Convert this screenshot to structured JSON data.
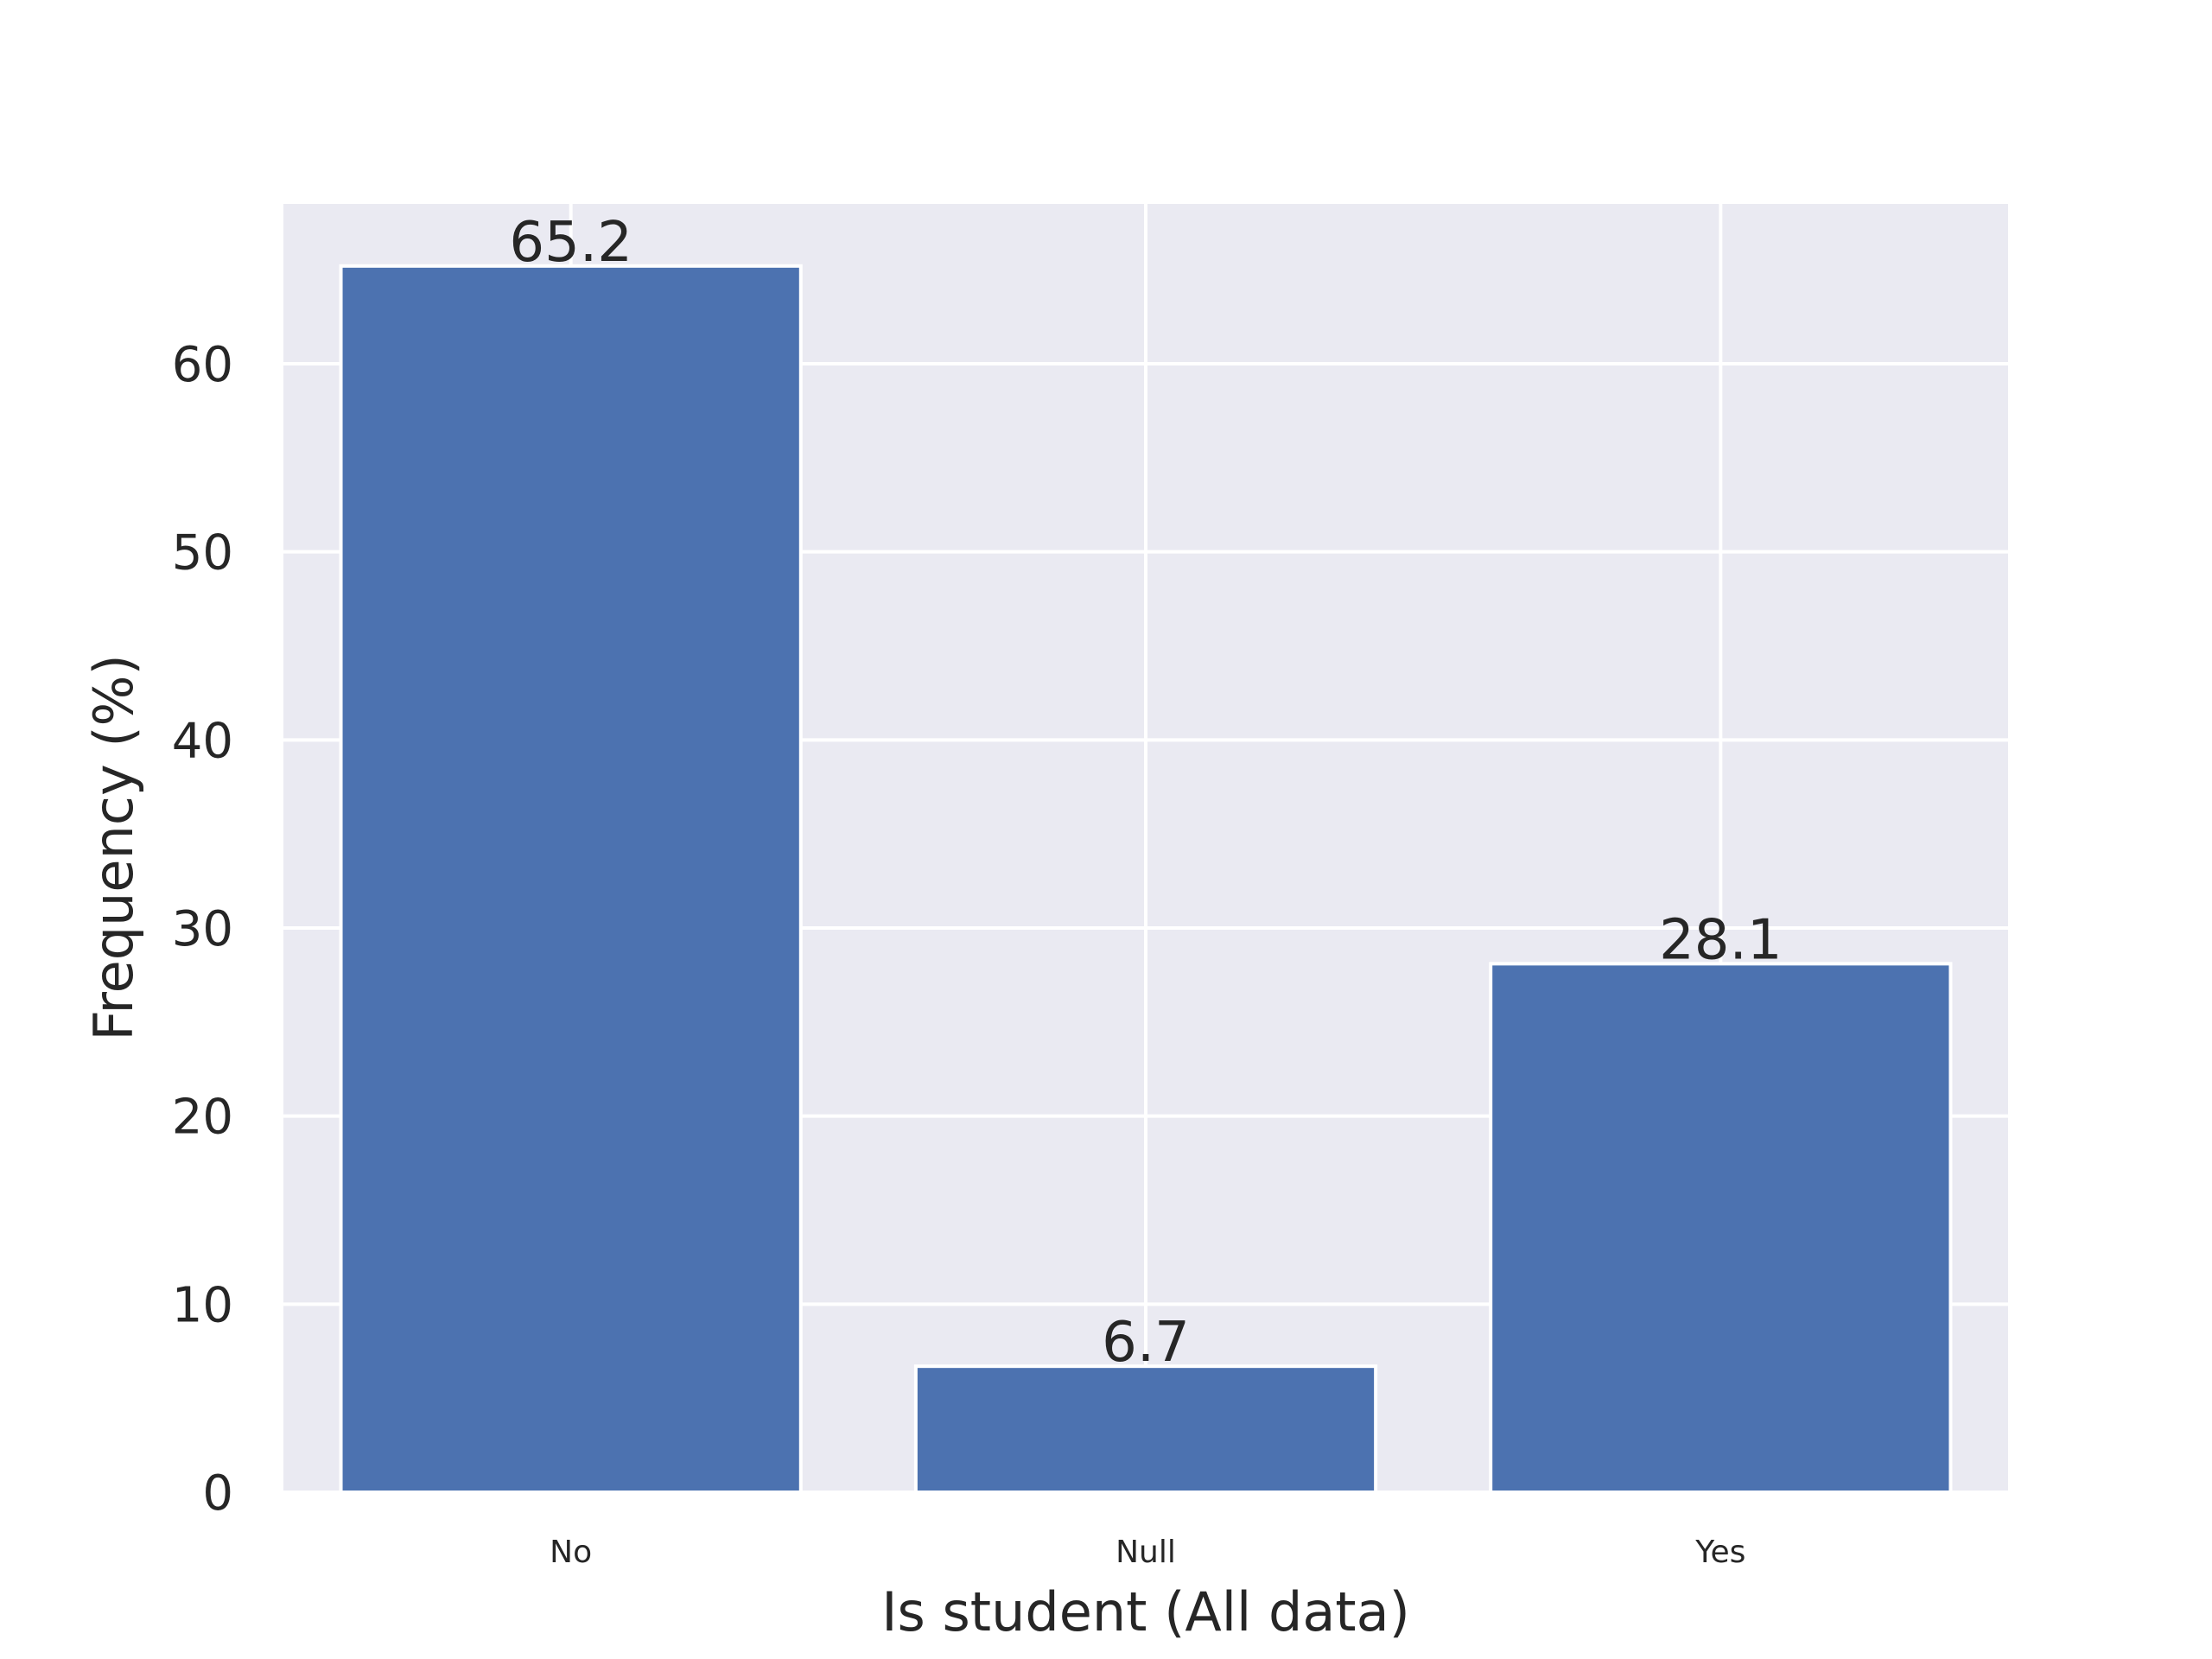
{
  "chart_data": {
    "type": "bar",
    "categories": [
      "No",
      "Null",
      "Yes"
    ],
    "values": [
      65.2,
      6.7,
      28.1
    ],
    "data_labels": [
      "65.2",
      "6.7",
      "28.1"
    ],
    "title": "",
    "xlabel": "Is student (All data)",
    "ylabel": "Frequency (%)",
    "ylim": [
      0,
      68.5
    ],
    "yticks": [
      0,
      10,
      20,
      30,
      40,
      50,
      60
    ],
    "ytick_labels": [
      "0",
      "10",
      "20",
      "30",
      "40",
      "50",
      "60"
    ],
    "grid": true,
    "legend": "none",
    "colors": {
      "bar": "#4c72b0",
      "bar_edge": "#ffffff",
      "plot_background": "#eaeaf2",
      "grid": "#ffffff",
      "text": "#262626"
    }
  }
}
